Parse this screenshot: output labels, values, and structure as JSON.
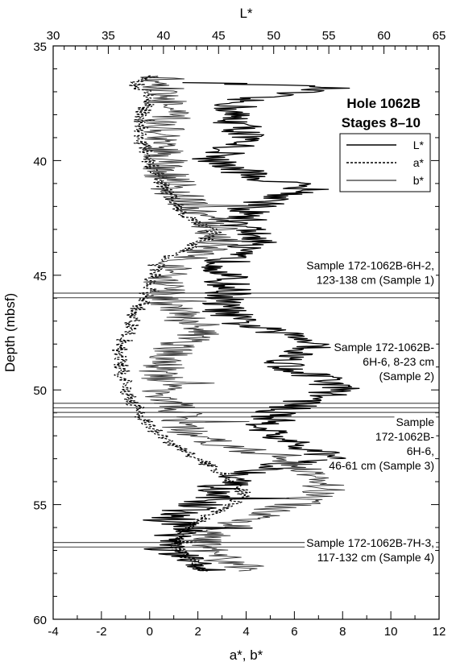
{
  "chart_data": {
    "type": "line",
    "title": "Hole 1062B",
    "subtitle": "Stages 8–10",
    "ylabel": "Depth (mbsf)",
    "xlabel_bottom": "a*, b*",
    "xlabel_top": "L*",
    "y_range": [
      35,
      60
    ],
    "y_ticks": [
      35,
      40,
      45,
      50,
      55,
      60
    ],
    "x_bottom_range": [
      -4,
      12
    ],
    "x_bottom_ticks": [
      -4,
      -2,
      0,
      2,
      4,
      6,
      8,
      10,
      12
    ],
    "x_top_range": [
      30,
      65
    ],
    "x_top_ticks": [
      30,
      35,
      40,
      45,
      50,
      55,
      60,
      65
    ],
    "legend_position": "top-right",
    "series": [
      {
        "name": "L*",
        "axis": "top",
        "style": "solid",
        "profile": [
          [
            36.6,
            43.5
          ],
          [
            36.8,
            55.5
          ],
          [
            37.3,
            47.0
          ],
          [
            38.0,
            46.0
          ],
          [
            38.8,
            47.5
          ],
          [
            39.5,
            46.0
          ],
          [
            40.0,
            44.5
          ],
          [
            40.8,
            49.0
          ],
          [
            41.2,
            53.5
          ],
          [
            42.0,
            48.0
          ],
          [
            42.8,
            47.0
          ],
          [
            43.3,
            48.5
          ],
          [
            44.0,
            46.0
          ],
          [
            45.0,
            45.5
          ],
          [
            45.8,
            46.0
          ],
          [
            46.2,
            45.0
          ],
          [
            47.0,
            46.5
          ],
          [
            47.5,
            50.0
          ],
          [
            48.0,
            55.0
          ],
          [
            48.4,
            52.0
          ],
          [
            49.0,
            51.0
          ],
          [
            49.5,
            54.5
          ],
          [
            50.0,
            56.0
          ],
          [
            50.5,
            53.0
          ],
          [
            51.0,
            50.0
          ],
          [
            51.8,
            49.5
          ],
          [
            52.5,
            52.0
          ],
          [
            53.0,
            56.0
          ],
          [
            53.3,
            50.0
          ],
          [
            54.0,
            46.0
          ],
          [
            54.5,
            44.0
          ],
          [
            55.0,
            43.5
          ],
          [
            55.6,
            40.0
          ],
          [
            56.0,
            42.0
          ],
          [
            56.5,
            41.0
          ],
          [
            57.0,
            40.0
          ],
          [
            57.5,
            42.5
          ],
          [
            57.9,
            44.0
          ]
        ]
      },
      {
        "name": "a*",
        "axis": "bottom",
        "style": "dashed",
        "profile": [
          [
            36.3,
            0.3
          ],
          [
            36.7,
            -0.8
          ],
          [
            37.0,
            0.0
          ],
          [
            38.0,
            -0.3
          ],
          [
            39.0,
            -0.4
          ],
          [
            40.0,
            0.0
          ],
          [
            41.0,
            0.5
          ],
          [
            41.8,
            1.0
          ],
          [
            42.5,
            1.6
          ],
          [
            43.2,
            2.8
          ],
          [
            43.8,
            1.6
          ],
          [
            44.5,
            0.3
          ],
          [
            45.5,
            0.0
          ],
          [
            46.5,
            -0.5
          ],
          [
            47.5,
            -0.9
          ],
          [
            48.2,
            -1.2
          ],
          [
            49.0,
            -1.2
          ],
          [
            50.0,
            -1.0
          ],
          [
            51.0,
            -0.4
          ],
          [
            51.6,
            0.0
          ],
          [
            52.3,
            0.8
          ],
          [
            53.0,
            2.0
          ],
          [
            53.8,
            3.2
          ],
          [
            54.6,
            4.0
          ],
          [
            55.3,
            2.8
          ],
          [
            56.0,
            1.5
          ],
          [
            56.8,
            1.0
          ],
          [
            57.5,
            1.8
          ],
          [
            57.9,
            2.2
          ]
        ]
      },
      {
        "name": "b*",
        "axis": "bottom",
        "style": "solid-gray",
        "profile": [
          [
            36.3,
            0.5
          ],
          [
            37.0,
            0.6
          ],
          [
            38.0,
            0.7
          ],
          [
            39.0,
            0.6
          ],
          [
            40.0,
            0.6
          ],
          [
            40.8,
            0.8
          ],
          [
            41.5,
            1.2
          ],
          [
            42.2,
            2.0
          ],
          [
            43.0,
            2.8
          ],
          [
            43.5,
            3.0
          ],
          [
            44.2,
            1.8
          ],
          [
            45.0,
            0.5
          ],
          [
            46.0,
            0.5
          ],
          [
            47.0,
            1.5
          ],
          [
            47.5,
            2.0
          ],
          [
            48.2,
            1.0
          ],
          [
            49.0,
            0.5
          ],
          [
            50.0,
            0.6
          ],
          [
            51.0,
            1.2
          ],
          [
            51.8,
            1.5
          ],
          [
            52.5,
            3.5
          ],
          [
            53.0,
            5.5
          ],
          [
            53.7,
            6.5
          ],
          [
            54.3,
            7.5
          ],
          [
            55.0,
            6.0
          ],
          [
            55.6,
            4.0
          ],
          [
            56.2,
            2.5
          ],
          [
            56.8,
            2.0
          ],
          [
            57.4,
            3.0
          ],
          [
            57.9,
            4.5
          ]
        ]
      }
    ],
    "sample_lines": [
      45.78,
      45.98,
      50.58,
      50.78,
      50.98,
      51.18,
      56.65,
      56.85
    ],
    "annotations": [
      {
        "lines": [
          "Sample 172-1062B-6H-2,",
          "123-138 cm (Sample 1)"
        ],
        "depth": 45.3,
        "align": "right"
      },
      {
        "lines": [
          "Sample 172-1062B-",
          "6H-6, 8-23 cm",
          "(Sample 2)"
        ],
        "depth": 49.5,
        "align": "right"
      },
      {
        "lines": [
          "Sample",
          "172-1062B-",
          "6H-6,",
          "46-61 cm (Sample 3)"
        ],
        "depth": 53.4,
        "align": "right"
      },
      {
        "lines": [
          "Sample 172-1062B-7H-3,",
          "117-132 cm (Sample 4)"
        ],
        "depth": 57.4,
        "align": "right"
      }
    ]
  }
}
